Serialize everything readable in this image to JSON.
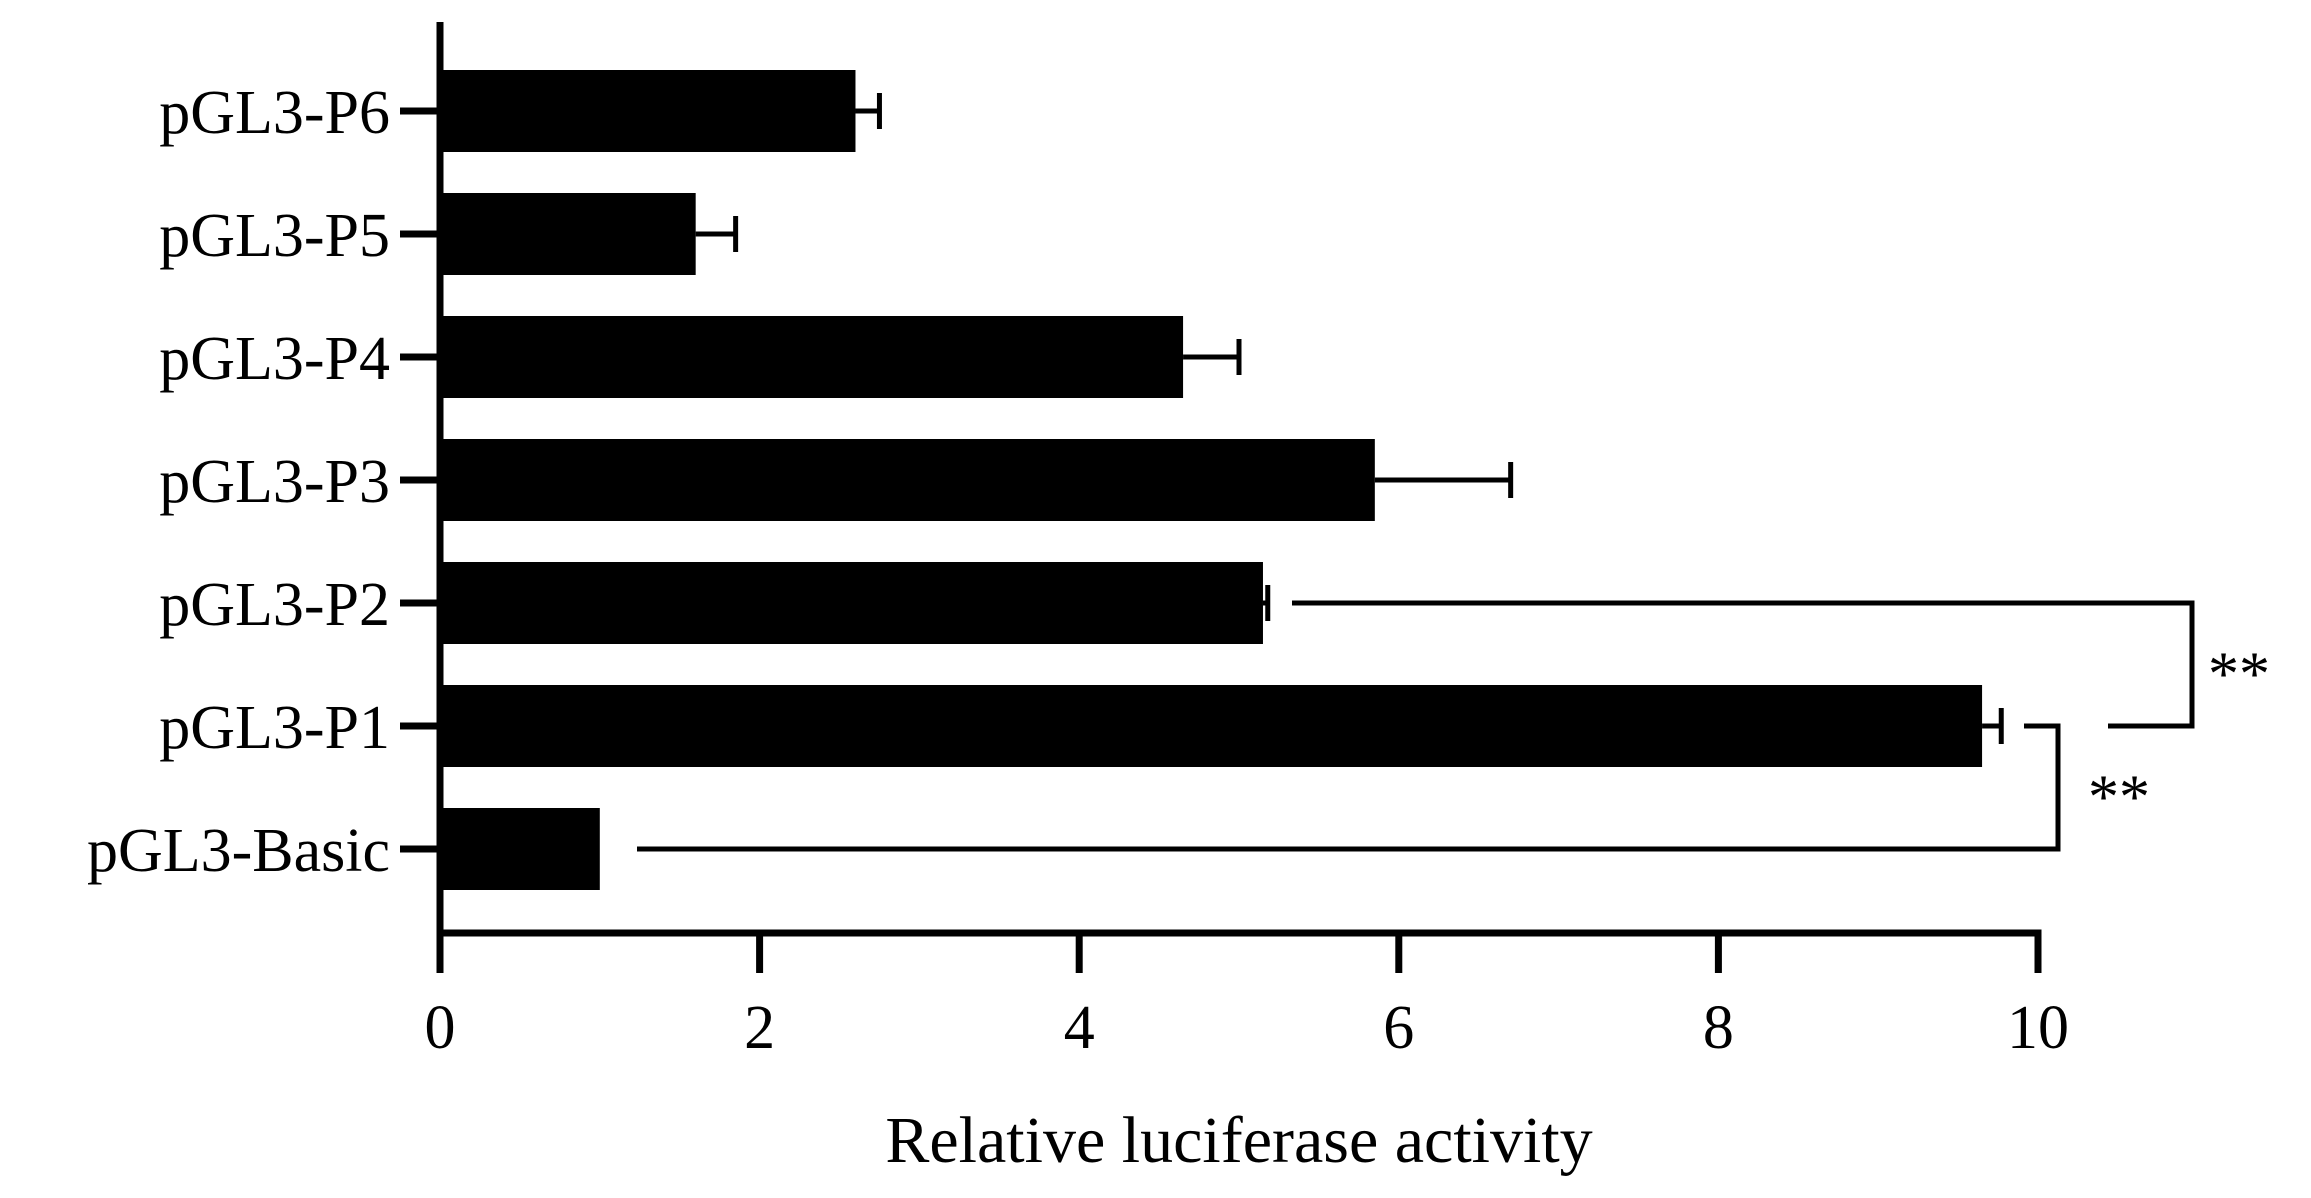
{
  "chart_data": {
    "type": "bar",
    "orientation": "horizontal",
    "categories": [
      "pGL3-P6",
      "pGL3-P5",
      "pGL3-P4",
      "pGL3-P3",
      "pGL3-P2",
      "pGL3-P1",
      "pGL3-Basic"
    ],
    "values": [
      2.6,
      1.6,
      4.65,
      5.85,
      5.15,
      9.65,
      1.0
    ],
    "errors": [
      0.15,
      0.25,
      0.35,
      0.85,
      0.03,
      0.12,
      0
    ],
    "xlabel": "Relative luciferase activity",
    "ylabel": "",
    "xlim": [
      0,
      10
    ],
    "xticks": [
      "0",
      "2",
      "4",
      "6",
      "8",
      "10"
    ],
    "grid": false,
    "bar_color": "#000000",
    "annotations": [
      {
        "label": "**",
        "from": "pGL3-P2",
        "to": "pGL3-P1"
      },
      {
        "label": "**",
        "from": "pGL3-P1",
        "to": "pGL3-Basic"
      }
    ]
  }
}
